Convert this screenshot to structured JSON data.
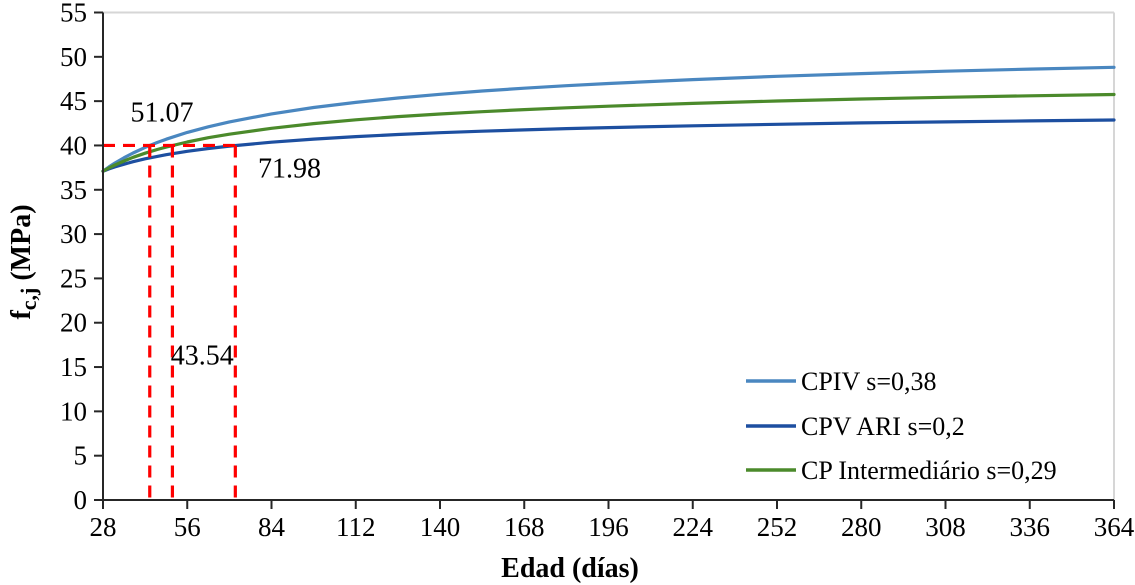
{
  "chart_data": {
    "type": "line",
    "title": "",
    "xlabel": "Edad (días)",
    "ylabel": "fc,j (MPa)",
    "ylabel_rich": {
      "base": "f",
      "sub": "c,j",
      "rest": " (MPa)"
    },
    "xlim": [
      28,
      364
    ],
    "ylim": [
      0,
      55
    ],
    "x_ticks": [
      28,
      56,
      84,
      112,
      140,
      168,
      196,
      224,
      252,
      280,
      308,
      336,
      364
    ],
    "y_ticks": [
      0,
      5,
      10,
      15,
      20,
      25,
      30,
      35,
      40,
      45,
      50,
      55
    ],
    "grid": false,
    "legend_position": "lower right",
    "x": [
      28,
      30,
      32,
      35,
      38,
      42,
      46,
      49,
      56,
      63,
      70,
      84,
      98,
      112,
      126,
      140,
      154,
      168,
      182,
      196,
      224,
      252,
      280,
      308,
      336,
      364
    ],
    "series": [
      {
        "name": "CPIV s=0,38",
        "color": "#4a87c0",
        "values": [
          37.1,
          37.58,
          38.02,
          38.62,
          39.15,
          39.78,
          40.33,
          40.71,
          41.47,
          42.11,
          42.66,
          43.56,
          44.28,
          44.86,
          45.35,
          45.77,
          46.14,
          46.46,
          46.74,
          46.99,
          47.43,
          47.8,
          48.11,
          48.38,
          48.62,
          48.82
        ]
      },
      {
        "name": "CPV ARI s=0,2",
        "color": "#1d4fa0",
        "values": [
          37.1,
          37.35,
          37.58,
          37.89,
          38.17,
          38.49,
          38.77,
          38.96,
          39.34,
          39.66,
          39.93,
          40.37,
          40.72,
          41.0,
          41.24,
          41.44,
          41.61,
          41.76,
          41.9,
          42.02,
          42.22,
          42.39,
          42.54,
          42.66,
          42.77,
          42.87
        ]
      },
      {
        "name": "CP Intermediário s=0,29",
        "color": "#4b8a2b",
        "values": [
          37.1,
          37.47,
          37.8,
          38.25,
          38.66,
          39.13,
          39.54,
          39.82,
          40.39,
          40.87,
          41.27,
          41.94,
          42.46,
          42.89,
          43.25,
          43.55,
          43.81,
          44.05,
          44.25,
          44.43,
          44.75,
          45.01,
          45.24,
          45.43,
          45.6,
          45.75
        ]
      }
    ],
    "annotations": [
      {
        "text": "51.07",
        "x": 47.6,
        "y": 43.7
      },
      {
        "text": "71.98",
        "x": 90.0,
        "y": 37.4
      },
      {
        "text": "43.54",
        "x": 61.0,
        "y": 16.3
      }
    ],
    "guides": {
      "color": "#fe0000",
      "h_line": {
        "y": 40,
        "x_start": 28,
        "x_end": 71.98
      },
      "v_lines": [
        43.54,
        51.07,
        71.98
      ]
    },
    "frame_color": "#d6d6d6",
    "axis_color": "#262626"
  }
}
